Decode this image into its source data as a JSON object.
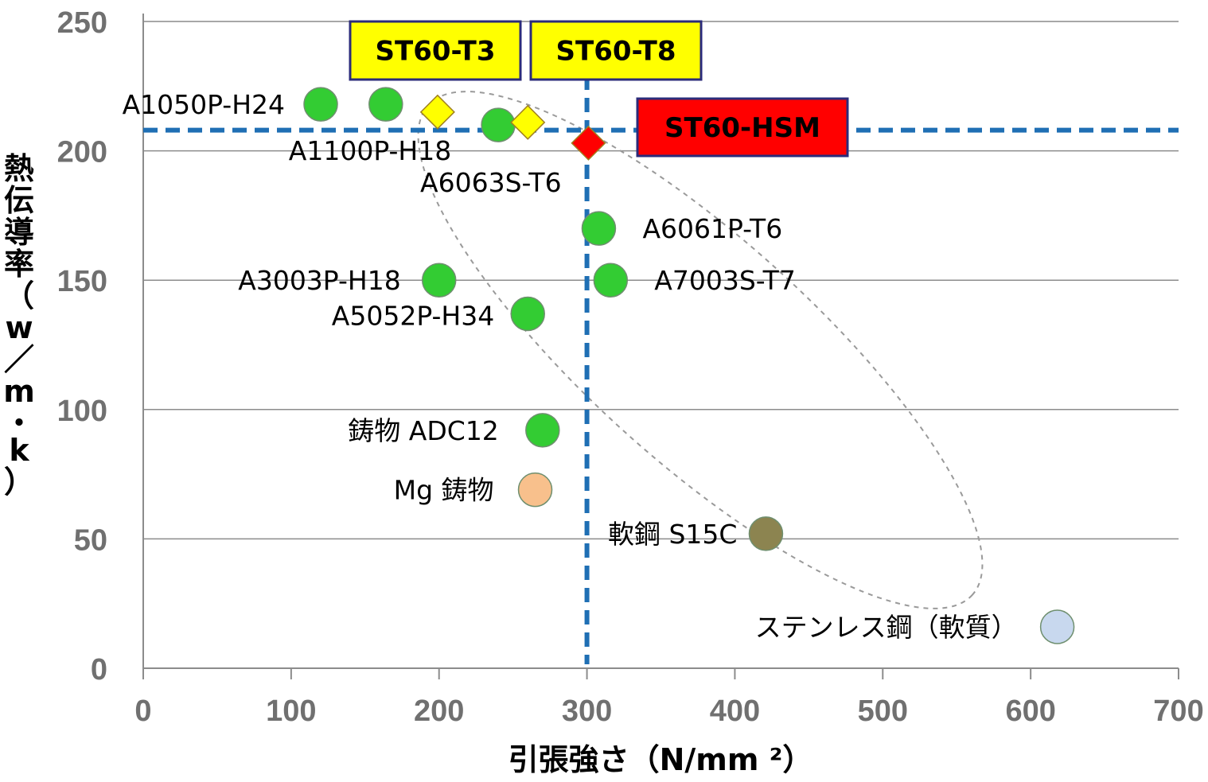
{
  "chart_data": {
    "type": "scatter",
    "xlabel": "引張強さ（N/mm ²）",
    "ylabel_chars": [
      "熱",
      "伝",
      "導",
      "率",
      "（",
      "w",
      "／",
      "m",
      "・",
      "k",
      "）"
    ],
    "xlim": [
      0,
      700
    ],
    "ylim": [
      0,
      250
    ],
    "x_ticks": [
      "0",
      "100",
      "200",
      "300",
      "400",
      "500",
      "600",
      "700"
    ],
    "y_ticks": [
      "0",
      "50",
      "100",
      "150",
      "200",
      "250"
    ],
    "grid": "horizontal",
    "points": [
      {
        "label": "A1050P-H24",
        "x": 120,
        "y": 218,
        "marker": "circle",
        "color": "#33cc33"
      },
      {
        "label": "A1100P-H18",
        "x": 164,
        "y": 218,
        "marker": "circle",
        "color": "#33cc33"
      },
      {
        "label": "A6063S-T6",
        "x": 240,
        "y": 210,
        "marker": "circle",
        "color": "#33cc33"
      },
      {
        "label": "A6061P-T6",
        "x": 308,
        "y": 170,
        "marker": "circle",
        "color": "#33cc33"
      },
      {
        "label": "A3003P-H18",
        "x": 200,
        "y": 150,
        "marker": "circle",
        "color": "#33cc33"
      },
      {
        "label": "A7003S-T7",
        "x": 316,
        "y": 150,
        "marker": "circle",
        "color": "#33cc33"
      },
      {
        "label": "A5052P-H34",
        "x": 260,
        "y": 137,
        "marker": "circle",
        "color": "#33cc33"
      },
      {
        "label": "鋳物 ADC12",
        "x": 270,
        "y": 92,
        "marker": "circle",
        "color": "#33cc33"
      },
      {
        "label": "Mg 鋳物",
        "x": 265,
        "y": 69,
        "marker": "circle",
        "color": "#f8c08c"
      },
      {
        "label": "軟鋼 S15C",
        "x": 421,
        "y": 52,
        "marker": "circle",
        "color": "#8c8450"
      },
      {
        "label": "ステンレス鋼（軟質）",
        "x": 618,
        "y": 16,
        "marker": "circle",
        "color": "#c8d8ee"
      },
      {
        "label": "ST60-T3",
        "x": 199,
        "y": 215,
        "marker": "diamond",
        "color": "#ffff00"
      },
      {
        "label": "ST60-T8",
        "x": 260,
        "y": 211,
        "marker": "diamond",
        "color": "#ffff00"
      },
      {
        "label": "ST60-HSM",
        "x": 301,
        "y": 203,
        "marker": "diamond",
        "color": "#ff0000"
      }
    ],
    "reference_lines": {
      "horizontal_y": 208,
      "vertical_x": 300,
      "color": "#1f6fb4"
    },
    "callouts": [
      {
        "text": "ST60-T3",
        "fill": "#ffff00"
      },
      {
        "text": "ST60-T8",
        "fill": "#ffff00"
      },
      {
        "text": "ST60-HSM",
        "fill": "#ff0000"
      }
    ]
  }
}
